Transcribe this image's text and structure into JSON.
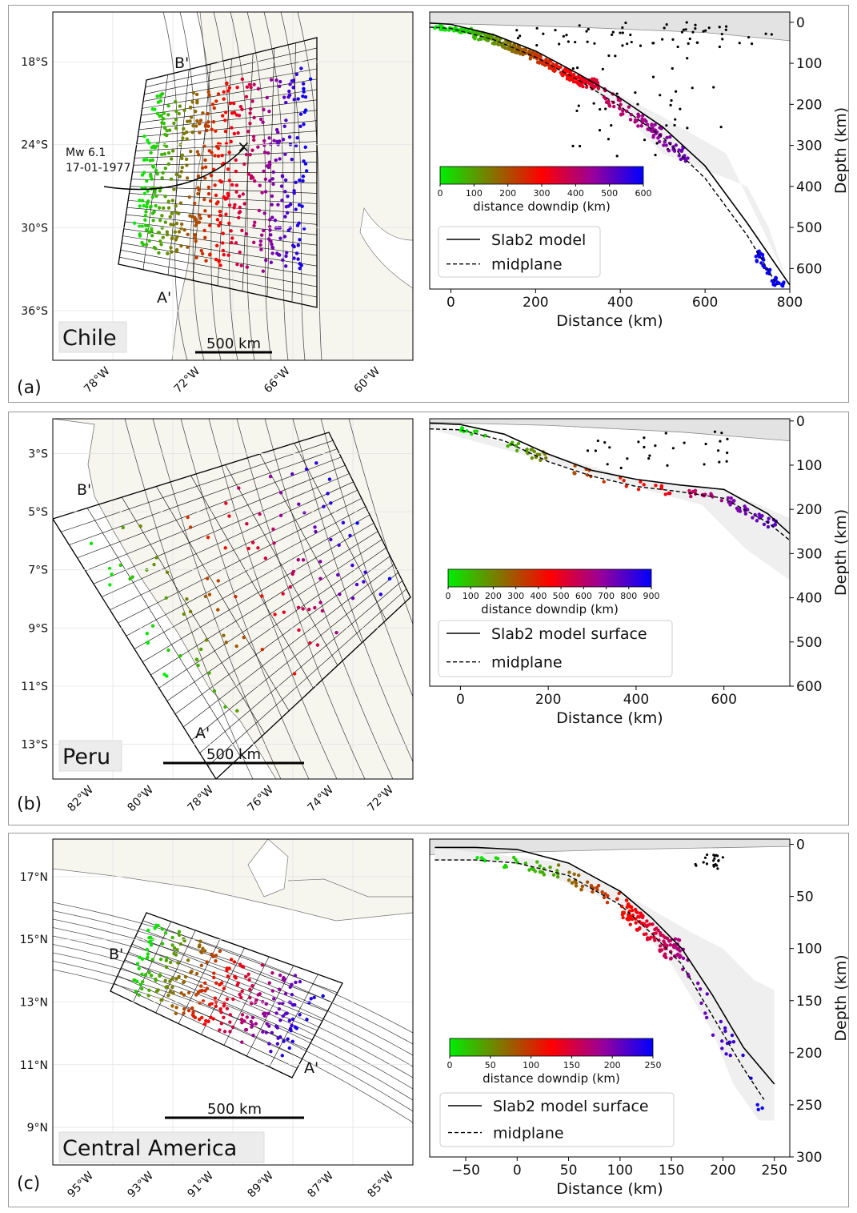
{
  "panels": [
    {
      "id": "a",
      "label": "(a)",
      "map": {
        "region_label": "Chile",
        "scale_label": "500 km",
        "lat_ticks": [
          "18°S",
          "24°S",
          "30°S",
          "36°S"
        ],
        "lon_ticks": [
          "78°W",
          "72°W",
          "66°W",
          "60°W"
        ],
        "profile_labels": [
          "B'",
          "A'"
        ],
        "annotation": [
          "Mw 6.1",
          "17-01-1977"
        ],
        "annotation_marker": "×"
      }
    },
    {
      "id": "b",
      "label": "(b)",
      "map": {
        "region_label": "Peru",
        "scale_label": "500 km",
        "lat_ticks": [
          "3°S",
          "5°S",
          "7°S",
          "9°S",
          "11°S",
          "13°S"
        ],
        "lon_ticks": [
          "82°W",
          "80°W",
          "78°W",
          "76°W",
          "74°W",
          "72°W"
        ],
        "profile_labels": [
          "B'",
          "A'"
        ]
      }
    },
    {
      "id": "c",
      "label": "(c)",
      "map": {
        "region_label": "Central America",
        "scale_label": "500 km",
        "lat_ticks": [
          "17°N",
          "15°N",
          "13°N",
          "11°N",
          "9°N"
        ],
        "lon_ticks": [
          "95°W",
          "93°W",
          "91°W",
          "89°W",
          "87°W",
          "85°W"
        ],
        "profile_labels": [
          "B'",
          "A'"
        ]
      }
    }
  ],
  "chart_data": [
    {
      "type": "scatter",
      "panel": "a",
      "xlabel": "Distance (km)",
      "ylabel": "Depth (km)",
      "xlim": [
        -50,
        800
      ],
      "ylim": [
        650,
        -25
      ],
      "xticks": [
        0,
        200,
        400,
        600,
        800
      ],
      "yticks": [
        0,
        100,
        200,
        300,
        400,
        500,
        600
      ],
      "colorbar": {
        "label": "distance downdip (km)",
        "range": [
          0,
          600
        ],
        "ticks": [
          0,
          100,
          200,
          300,
          400,
          500,
          600
        ],
        "colors": [
          "#00ee00",
          "#ff0000",
          "#0000ff"
        ]
      },
      "legend": {
        "entries": [
          "Slab2 model",
          "midplane"
        ],
        "placement": "lower-left"
      },
      "slab_line": [
        [
          -50,
          2
        ],
        [
          0,
          5
        ],
        [
          100,
          30
        ],
        [
          200,
          70
        ],
        [
          300,
          125
        ],
        [
          400,
          185
        ],
        [
          500,
          255
        ],
        [
          600,
          350
        ],
        [
          700,
          490
        ],
        [
          800,
          640
        ]
      ],
      "midplane_line": [
        [
          -50,
          12
        ],
        [
          0,
          15
        ],
        [
          100,
          42
        ],
        [
          200,
          85
        ],
        [
          300,
          140
        ],
        [
          400,
          205
        ],
        [
          500,
          280
        ],
        [
          600,
          380
        ],
        [
          700,
          520
        ],
        [
          770,
          640
        ]
      ],
      "band_upper": [
        [
          -50,
          2
        ],
        [
          100,
          30
        ],
        [
          300,
          125
        ],
        [
          500,
          230
        ],
        [
          650,
          320
        ],
        [
          790,
          620
        ]
      ],
      "band_lower": [
        [
          790,
          620
        ],
        [
          750,
          500
        ],
        [
          700,
          400
        ],
        [
          600,
          360
        ],
        [
          500,
          320
        ],
        [
          400,
          215
        ],
        [
          300,
          140
        ],
        [
          100,
          42
        ],
        [
          -50,
          12
        ]
      ],
      "top_band": [
        [
          -50,
          -25
        ],
        [
          800,
          -25
        ],
        [
          800,
          45
        ],
        [
          600,
          25
        ],
        [
          300,
          12
        ],
        [
          -50,
          2
        ]
      ],
      "clusters": [
        {
          "x": [
            -40,
            50
          ],
          "y": [
            0,
            20
          ],
          "n": 35,
          "dd": [
            0,
            40
          ],
          "dy": 5
        },
        {
          "x": [
            50,
            200
          ],
          "y": [
            15,
            80
          ],
          "n": 120,
          "dd": [
            60,
            220
          ],
          "dy": 10
        },
        {
          "x": [
            200,
            350
          ],
          "y": [
            70,
            150
          ],
          "n": 160,
          "dd": [
            230,
            360
          ],
          "dy": 12
        },
        {
          "x": [
            360,
            560
          ],
          "y": [
            160,
            320
          ],
          "n": 90,
          "dd": [
            380,
            500
          ],
          "dy": 20
        },
        {
          "x": [
            720,
            790
          ],
          "y": [
            570,
            640
          ],
          "n": 40,
          "dd": [
            590,
            600
          ],
          "dy": 15
        }
      ],
      "shallow_black": {
        "x": [
          150,
          760
        ],
        "y": [
          0,
          60
        ],
        "n": 60
      },
      "deep_black": {
        "x": [
          250,
          650
        ],
        "y": [
          80,
          330
        ],
        "n": 40
      }
    },
    {
      "type": "scatter",
      "panel": "b",
      "xlabel": "Distance (km)",
      "ylabel": "Depth (km)",
      "xlim": [
        -70,
        750
      ],
      "ylim": [
        600,
        -5
      ],
      "xticks": [
        0,
        200,
        400,
        600
      ],
      "yticks": [
        0,
        100,
        200,
        300,
        400,
        500,
        600
      ],
      "colorbar": {
        "label": "distance downdip (km)",
        "range": [
          0,
          900
        ],
        "ticks": [
          0,
          100,
          200,
          300,
          400,
          500,
          600,
          700,
          800,
          900
        ],
        "colors": [
          "#00ee00",
          "#ff0000",
          "#0000ff"
        ]
      },
      "legend": {
        "entries": [
          "Slab2 model surface",
          "midplane"
        ],
        "placement": "lower-left"
      },
      "slab_line": [
        [
          -70,
          5
        ],
        [
          0,
          8
        ],
        [
          100,
          30
        ],
        [
          200,
          75
        ],
        [
          300,
          112
        ],
        [
          400,
          132
        ],
        [
          500,
          145
        ],
        [
          600,
          155
        ],
        [
          700,
          210
        ],
        [
          750,
          255
        ]
      ],
      "midplane_line": [
        [
          -70,
          18
        ],
        [
          0,
          20
        ],
        [
          100,
          45
        ],
        [
          200,
          92
        ],
        [
          300,
          125
        ],
        [
          400,
          148
        ],
        [
          500,
          160
        ],
        [
          600,
          175
        ],
        [
          700,
          230
        ],
        [
          750,
          270
        ]
      ],
      "band_upper": [
        [
          -70,
          5
        ],
        [
          200,
          75
        ],
        [
          400,
          132
        ],
        [
          600,
          155
        ],
        [
          750,
          220
        ]
      ],
      "band_lower": [
        [
          750,
          360
        ],
        [
          650,
          290
        ],
        [
          550,
          190
        ],
        [
          400,
          150
        ],
        [
          200,
          92
        ],
        [
          -70,
          18
        ]
      ],
      "top_band": [
        [
          -70,
          -5
        ],
        [
          750,
          -5
        ],
        [
          750,
          45
        ],
        [
          500,
          25
        ],
        [
          200,
          10
        ],
        [
          -70,
          3
        ]
      ],
      "clusters": [
        {
          "x": [
            0,
            60
          ],
          "y": [
            5,
            30
          ],
          "n": 10,
          "dd": [
            0,
            60
          ],
          "dy": 6
        },
        {
          "x": [
            100,
            200
          ],
          "y": [
            30,
            80
          ],
          "n": 22,
          "dd": [
            100,
            220
          ],
          "dy": 10
        },
        {
          "x": [
            250,
            500
          ],
          "y": [
            100,
            170
          ],
          "n": 22,
          "dd": [
            300,
            500
          ],
          "dy": 12
        },
        {
          "x": [
            520,
            600
          ],
          "y": [
            150,
            175
          ],
          "n": 14,
          "dd": [
            580,
            650
          ],
          "dy": 8
        },
        {
          "x": [
            600,
            720
          ],
          "y": [
            170,
            230
          ],
          "n": 35,
          "dd": [
            700,
            780
          ],
          "dy": 10
        }
      ],
      "shallow_black": {
        "x": [
          280,
          620
        ],
        "y": [
          20,
          110
        ],
        "n": 28
      },
      "deep_black": {
        "x": [
          0,
          0
        ],
        "y": [
          0,
          0
        ],
        "n": 0
      }
    },
    {
      "type": "scatter",
      "panel": "c",
      "xlabel": "Distance (km)",
      "ylabel": "Depth (km)",
      "xlim": [
        -85,
        265
      ],
      "ylim": [
        300,
        -5
      ],
      "xticks": [
        -50,
        0,
        50,
        100,
        150,
        200,
        250
      ],
      "yticks": [
        0,
        50,
        100,
        150,
        200,
        250,
        300
      ],
      "colorbar": {
        "label": "distance downdip (km)",
        "range": [
          0,
          250
        ],
        "ticks": [
          0,
          50,
          100,
          150,
          200,
          250
        ],
        "colors": [
          "#00ee00",
          "#ff0000",
          "#0000ff"
        ]
      },
      "legend": {
        "entries": [
          "Slab2 model surface",
          "midplane"
        ],
        "placement": "lower-left"
      },
      "slab_line": [
        [
          -80,
          3
        ],
        [
          -40,
          3
        ],
        [
          0,
          5
        ],
        [
          50,
          18
        ],
        [
          100,
          45
        ],
        [
          130,
          70
        ],
        [
          160,
          100
        ],
        [
          190,
          145
        ],
        [
          220,
          195
        ],
        [
          250,
          230
        ]
      ],
      "midplane_line": [
        [
          -80,
          15
        ],
        [
          -40,
          15
        ],
        [
          0,
          18
        ],
        [
          50,
          30
        ],
        [
          100,
          58
        ],
        [
          130,
          85
        ],
        [
          160,
          115
        ],
        [
          190,
          165
        ],
        [
          220,
          215
        ],
        [
          240,
          245
        ]
      ],
      "band_upper": [
        [
          -80,
          3
        ],
        [
          50,
          18
        ],
        [
          130,
          62
        ],
        [
          170,
          85
        ],
        [
          200,
          100
        ],
        [
          230,
          130
        ],
        [
          250,
          140
        ]
      ],
      "band_lower": [
        [
          250,
          265
        ],
        [
          235,
          265
        ],
        [
          210,
          230
        ],
        [
          190,
          180
        ],
        [
          150,
          115
        ],
        [
          100,
          58
        ],
        [
          0,
          18
        ],
        [
          -80,
          15
        ]
      ],
      "top_band": [
        [
          -85,
          -5
        ],
        [
          265,
          -5
        ],
        [
          265,
          2
        ],
        [
          100,
          5
        ],
        [
          -85,
          10
        ]
      ],
      "clusters": [
        {
          "x": [
            -40,
            40
          ],
          "y": [
            12,
            35
          ],
          "n": 30,
          "dd": [
            0,
            40
          ],
          "dy": 6
        },
        {
          "x": [
            40,
            100
          ],
          "y": [
            15,
            55
          ],
          "n": 30,
          "dd": [
            60,
            110
          ],
          "dy": 8
        },
        {
          "x": [
            100,
            160
          ],
          "y": [
            50,
            100
          ],
          "n": 120,
          "dd": [
            110,
            180
          ],
          "dy": 10
        },
        {
          "x": [
            160,
            240
          ],
          "y": [
            100,
            260
          ],
          "n": 30,
          "dd": [
            190,
            250
          ],
          "dy": 20
        }
      ],
      "shallow_black": {
        "x": [
          170,
          200
        ],
        "y": [
          10,
          25
        ],
        "n": 20
      },
      "deep_black": {
        "x": [
          0,
          0
        ],
        "y": [
          0,
          0
        ],
        "n": 0
      }
    }
  ]
}
